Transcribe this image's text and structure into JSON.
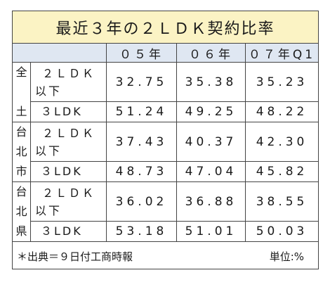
{
  "title": "最近３年の２ＬＤＫ契約比率",
  "columns": [
    "０５年",
    "０６年",
    "０７年Q1"
  ],
  "regions": [
    {
      "name_chars": [
        "全",
        "",
        "土"
      ],
      "rows": [
        {
          "label_line1": "２ＬＤＫ",
          "label_line2": "以下",
          "values": [
            "32.75",
            "35.38",
            "35.23"
          ]
        },
        {
          "label": "３LDK",
          "values": [
            "51.24",
            "49.25",
            "48.22"
          ]
        }
      ]
    },
    {
      "name_chars": [
        "台",
        "北",
        "市"
      ],
      "rows": [
        {
          "label_line1": "２ＬＤＫ",
          "label_line2": "以下",
          "values": [
            "37.43",
            "40.37",
            "42.30"
          ]
        },
        {
          "label": "３LDK",
          "values": [
            "48.73",
            "47.04",
            "45.82"
          ]
        }
      ]
    },
    {
      "name_chars": [
        "台",
        "北",
        "県"
      ],
      "rows": [
        {
          "label_line1": "２ＬＤＫ",
          "label_line2": "以下",
          "values": [
            "36.02",
            "36.88",
            "38.55"
          ]
        },
        {
          "label": "３LDK",
          "values": [
            "53.18",
            "51.01",
            "50.03"
          ]
        }
      ]
    }
  ],
  "footer": {
    "source": "＊出典＝９日付工商時報",
    "unit": "単位:%"
  },
  "colors": {
    "title_bg": "#fbf3c4",
    "header_bg": "#dfe7f2",
    "border": "#444444"
  }
}
